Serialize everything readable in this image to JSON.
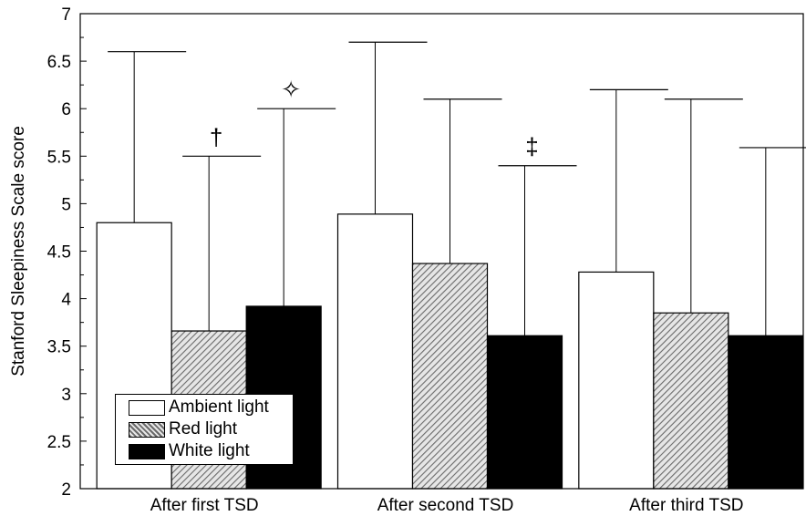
{
  "chart_data": {
    "type": "bar",
    "categories": [
      "After first TSD",
      "After second TSD",
      "After third TSD"
    ],
    "series": [
      {
        "name": "Ambient light",
        "values": [
          4.8,
          4.89,
          4.28
        ],
        "error_upper": [
          6.6,
          6.7,
          6.2
        ],
        "color": "#ffffff",
        "pattern": "solid"
      },
      {
        "name": "Red light",
        "values": [
          3.66,
          4.37,
          3.85
        ],
        "error_upper": [
          5.5,
          6.1,
          6.1
        ],
        "color": "#9a9a9a",
        "pattern": "diagonal-hatch"
      },
      {
        "name": "White light",
        "values": [
          3.92,
          3.61,
          3.61
        ],
        "error_upper": [
          6.0,
          5.4,
          5.59
        ],
        "color": "#000000",
        "pattern": "solid"
      }
    ],
    "annotations": [
      {
        "category": "After first TSD",
        "series": "Red light",
        "symbol": "†"
      },
      {
        "category": "After first TSD",
        "series": "White light",
        "symbol": "✧"
      },
      {
        "category": "After second TSD",
        "series": "White light",
        "symbol": "‡"
      }
    ],
    "title": "",
    "xlabel": "",
    "ylabel": "Stanford Sleepiness Scale score",
    "ylim": [
      2,
      7
    ],
    "yticks": [
      "2",
      "2.5",
      "3",
      "3.5",
      "4",
      "4.5",
      "5",
      "5.5",
      "6",
      "6.5",
      "7"
    ],
    "grid": false,
    "legend_position": "bottom-left"
  }
}
